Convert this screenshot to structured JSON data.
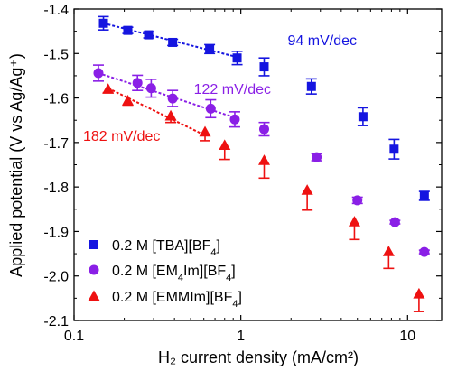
{
  "chart_data": {
    "type": "scatter",
    "xlabel": "H₂ current density (mA/cm²)",
    "ylabel": "Applied potential (V vs Ag/Ag⁺)",
    "x_scale": "log",
    "xlim": [
      0.1,
      16
    ],
    "ylim": [
      -2.1,
      -1.4
    ],
    "x_ticks": [
      0.1,
      1,
      10
    ],
    "x_tick_labels": [
      "0.1",
      "1",
      "10"
    ],
    "y_ticks": [
      -1.4,
      -1.5,
      -1.6,
      -1.7,
      -1.8,
      -1.9,
      -2.0,
      -2.1
    ],
    "y_tick_labels": [
      "-1.4",
      "-1.5",
      "-1.6",
      "-1.7",
      "-1.8",
      "-1.9",
      "-2.0",
      "-2.1"
    ],
    "grid": false,
    "legend_position": "bottom-left",
    "series": [
      {
        "name": "0.2 M [TBA][BF4]",
        "name_main": "0.2 M [TBA][BF",
        "name_sub": "4",
        "name_end": "]",
        "marker": "square",
        "color": "#1515e0",
        "points": [
          {
            "x": 0.15,
            "y": -1.432,
            "err_low": 0.015,
            "err_high": 0.015
          },
          {
            "x": 0.21,
            "y": -1.448,
            "err_low": 0.007,
            "err_high": 0.007
          },
          {
            "x": 0.28,
            "y": -1.458,
            "err_low": 0.007,
            "err_high": 0.007
          },
          {
            "x": 0.39,
            "y": -1.475,
            "err_low": 0.007,
            "err_high": 0.007
          },
          {
            "x": 0.65,
            "y": -1.49,
            "err_low": 0.01,
            "err_high": 0.01
          },
          {
            "x": 0.95,
            "y": -1.51,
            "err_low": 0.015,
            "err_high": 0.015
          },
          {
            "x": 1.38,
            "y": -1.53,
            "err_low": 0.02,
            "err_high": 0.02
          },
          {
            "x": 2.65,
            "y": -1.574,
            "err_low": 0.017,
            "err_high": 0.017
          },
          {
            "x": 5.4,
            "y": -1.642,
            "err_low": 0.02,
            "err_high": 0.02
          },
          {
            "x": 8.3,
            "y": -1.715,
            "err_low": 0.022,
            "err_high": 0.022
          },
          {
            "x": 12.6,
            "y": -1.82,
            "err_low": 0.01,
            "err_high": 0.01
          }
        ]
      },
      {
        "name": "0.2 M [EM4Im][BF4]",
        "name_main": "0.2 M [EM",
        "name_sub": "4",
        "name_mid": "Im][BF",
        "name_sub2": "4",
        "name_end": "]",
        "marker": "circle",
        "color": "#8a1fe6",
        "points": [
          {
            "x": 0.14,
            "y": -1.544,
            "err_low": 0.018,
            "err_high": 0.018
          },
          {
            "x": 0.24,
            "y": -1.566,
            "err_low": 0.017,
            "err_high": 0.017
          },
          {
            "x": 0.29,
            "y": -1.578,
            "err_low": 0.02,
            "err_high": 0.02
          },
          {
            "x": 0.39,
            "y": -1.601,
            "err_low": 0.018,
            "err_high": 0.018
          },
          {
            "x": 0.66,
            "y": -1.624,
            "err_low": 0.02,
            "err_high": 0.02
          },
          {
            "x": 0.92,
            "y": -1.648,
            "err_low": 0.017,
            "err_high": 0.017
          },
          {
            "x": 1.38,
            "y": -1.67,
            "err_low": 0.015,
            "err_high": 0.015
          },
          {
            "x": 2.85,
            "y": -1.733,
            "err_low": 0.008,
            "err_high": 0.008
          },
          {
            "x": 5.0,
            "y": -1.83,
            "err_low": 0.007,
            "err_high": 0.007
          },
          {
            "x": 8.4,
            "y": -1.879,
            "err_low": 0.004,
            "err_high": 0.004
          },
          {
            "x": 12.6,
            "y": -1.946,
            "err_low": 0.004,
            "err_high": 0.004
          }
        ]
      },
      {
        "name": "0.2 M [EMMIm][BF4]",
        "name_main": "0.2 M [EMMIm][BF",
        "name_sub": "4",
        "name_end": "]",
        "marker": "triangle",
        "color": "#ee1111",
        "points": [
          {
            "x": 0.16,
            "y": -1.58,
            "err_low": 0.008,
            "err_high": 0.0
          },
          {
            "x": 0.21,
            "y": -1.606,
            "err_low": 0.01,
            "err_high": 0.0
          },
          {
            "x": 0.38,
            "y": -1.64,
            "err_low": 0.015,
            "err_high": 0.0
          },
          {
            "x": 0.61,
            "y": -1.676,
            "err_low": 0.02,
            "err_high": 0.0
          },
          {
            "x": 0.8,
            "y": -1.706,
            "err_low": 0.032,
            "err_high": 0.0
          },
          {
            "x": 1.38,
            "y": -1.74,
            "err_low": 0.04,
            "err_high": 0.0
          },
          {
            "x": 2.5,
            "y": -1.807,
            "err_low": 0.045,
            "err_high": 0.0
          },
          {
            "x": 4.8,
            "y": -1.878,
            "err_low": 0.04,
            "err_high": 0.0
          },
          {
            "x": 7.7,
            "y": -1.945,
            "err_low": 0.038,
            "err_high": 0.0
          },
          {
            "x": 11.7,
            "y": -2.04,
            "err_low": 0.04,
            "err_high": 0.0
          }
        ]
      }
    ],
    "fit_lines": [
      {
        "series": 0,
        "label": "94 mV/dec",
        "color": "#1515e0",
        "x_start": 0.15,
        "y_start": -1.432,
        "x_end": 0.95,
        "y_end": -1.508
      },
      {
        "series": 1,
        "label": "122 mV/dec",
        "color": "#8a1fe6",
        "x_start": 0.14,
        "y_start": -1.544,
        "x_end": 0.92,
        "y_end": -1.644
      },
      {
        "series": 2,
        "label": "182 mV/dec",
        "color": "#ee1111",
        "x_start": 0.16,
        "y_start": -1.578,
        "x_end": 0.61,
        "y_end": -1.684
      }
    ]
  }
}
